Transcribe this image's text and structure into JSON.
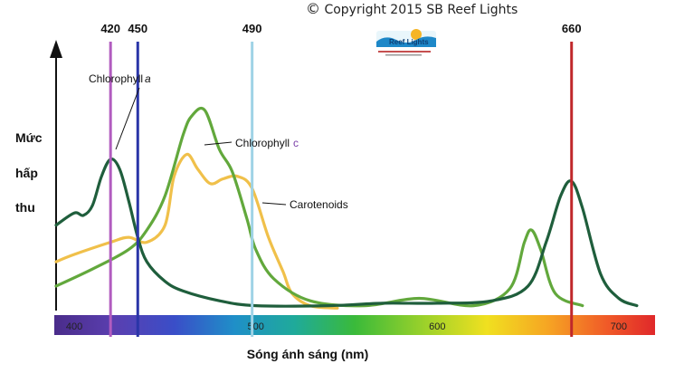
{
  "copyright": {
    "symbol": "©",
    "text": "Copyright 2015 SB Reef Lights"
  },
  "logo_text": "Reef Lights",
  "y_label_lines": [
    "Mức",
    "hấp",
    "thu"
  ],
  "chart_data": {
    "type": "line",
    "xlabel": "Sóng ánh sáng (nm)",
    "ylabel": "Mức hấp thu",
    "xlim": [
      390,
      720
    ],
    "ylim": [
      0,
      1.05
    ],
    "xticks": [
      {
        "value": 400,
        "label": "400"
      },
      {
        "value": 500,
        "label": "500"
      },
      {
        "value": 600,
        "label": "600"
      },
      {
        "value": 700,
        "label": "700"
      }
    ],
    "grid": false,
    "markers": [
      {
        "label": "420",
        "x": 420,
        "color": "#b25cbf"
      },
      {
        "label": "450",
        "x": 435,
        "color": "#2a35a8"
      },
      {
        "label": "490",
        "x": 498,
        "color": "#9fd3e6"
      },
      {
        "label": "660",
        "x": 674,
        "color": "#c0282b"
      }
    ],
    "series": [
      {
        "name": "Chlorophyll a",
        "color": "#1f5e3c",
        "label_x": 398,
        "label_y": 0.86,
        "points": [
          [
            390,
            0.35
          ],
          [
            400,
            0.4
          ],
          [
            405,
            0.39
          ],
          [
            410,
            0.43
          ],
          [
            415,
            0.55
          ],
          [
            420,
            0.62
          ],
          [
            425,
            0.58
          ],
          [
            430,
            0.45
          ],
          [
            435,
            0.3
          ],
          [
            440,
            0.2
          ],
          [
            450,
            0.12
          ],
          [
            460,
            0.08
          ],
          [
            480,
            0.04
          ],
          [
            500,
            0.02
          ],
          [
            540,
            0.02
          ],
          [
            570,
            0.03
          ],
          [
            600,
            0.03
          ],
          [
            630,
            0.04
          ],
          [
            650,
            0.1
          ],
          [
            660,
            0.28
          ],
          [
            668,
            0.47
          ],
          [
            674,
            0.53
          ],
          [
            680,
            0.42
          ],
          [
            690,
            0.15
          ],
          [
            700,
            0.05
          ],
          [
            710,
            0.02
          ]
        ]
      },
      {
        "name": "Chlorophyll c",
        "color": "#62a83c",
        "label_x": 472,
        "label_y": 0.65,
        "points": [
          [
            390,
            0.1
          ],
          [
            410,
            0.17
          ],
          [
            430,
            0.25
          ],
          [
            440,
            0.33
          ],
          [
            450,
            0.47
          ],
          [
            460,
            0.72
          ],
          [
            465,
            0.8
          ],
          [
            472,
            0.82
          ],
          [
            480,
            0.66
          ],
          [
            487,
            0.57
          ],
          [
            495,
            0.38
          ],
          [
            500,
            0.25
          ],
          [
            510,
            0.13
          ],
          [
            530,
            0.04
          ],
          [
            560,
            0.02
          ],
          [
            590,
            0.05
          ],
          [
            620,
            0.02
          ],
          [
            640,
            0.09
          ],
          [
            648,
            0.28
          ],
          [
            652,
            0.33
          ],
          [
            657,
            0.25
          ],
          [
            665,
            0.07
          ],
          [
            680,
            0.02
          ]
        ]
      },
      {
        "name": "Carotenoids",
        "color": "#f0c04a",
        "label_x": 512,
        "label_y": 0.42,
        "points": [
          [
            390,
            0.2
          ],
          [
            400,
            0.23
          ],
          [
            420,
            0.28
          ],
          [
            430,
            0.3
          ],
          [
            440,
            0.28
          ],
          [
            450,
            0.35
          ],
          [
            455,
            0.55
          ],
          [
            462,
            0.64
          ],
          [
            468,
            0.58
          ],
          [
            475,
            0.52
          ],
          [
            482,
            0.54
          ],
          [
            490,
            0.55
          ],
          [
            498,
            0.5
          ],
          [
            507,
            0.3
          ],
          [
            515,
            0.16
          ],
          [
            520,
            0.07
          ],
          [
            530,
            0.02
          ],
          [
            545,
            0.01
          ]
        ]
      }
    ],
    "annotations": [
      {
        "text": "Chlorophyll",
        "suffix": "a",
        "series": "Chlorophyll a"
      },
      {
        "text": "Chlorophyll",
        "suffix": "c",
        "series": "Chlorophyll c"
      },
      {
        "text": "Carotenoids",
        "suffix": "",
        "series": "Carotenoids"
      }
    ]
  }
}
